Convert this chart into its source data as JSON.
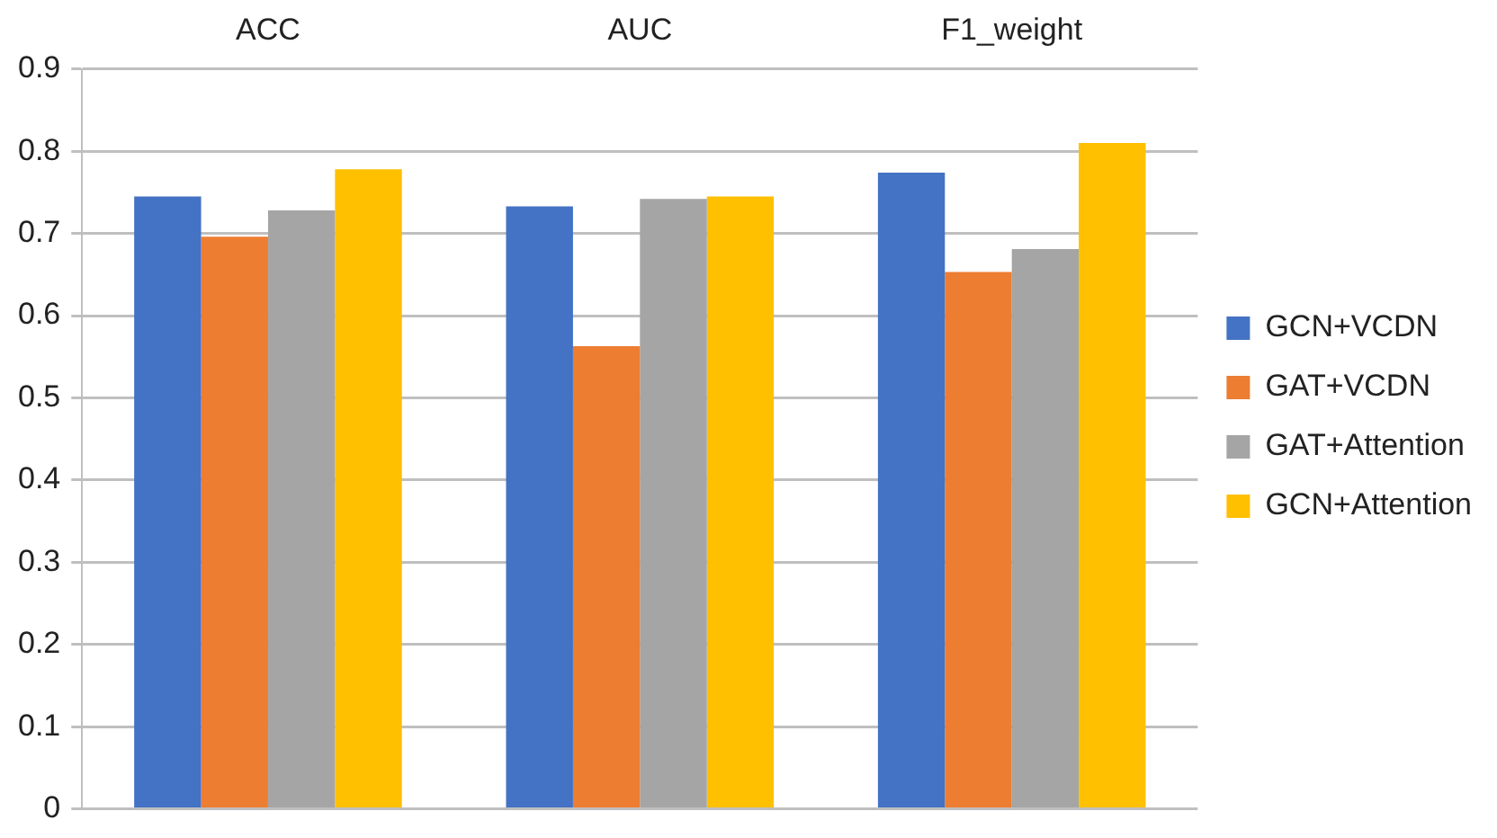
{
  "chart_data": {
    "type": "bar",
    "categories": [
      "ACC",
      "AUC",
      "F1_weight"
    ],
    "series": [
      {
        "name": "GCN+VCDN",
        "color": "#4472c4",
        "values": [
          0.745,
          0.733,
          0.774
        ]
      },
      {
        "name": "GAT+VCDN",
        "color": "#ed7d31",
        "values": [
          0.696,
          0.563,
          0.653
        ]
      },
      {
        "name": "GAT+Attention",
        "color": "#a5a5a5",
        "values": [
          0.728,
          0.742,
          0.681
        ]
      },
      {
        "name": "GCN+Attention",
        "color": "#ffc000",
        "values": [
          0.778,
          0.745,
          0.81
        ]
      }
    ],
    "ylim": [
      0,
      0.9
    ],
    "yticks": [
      0,
      0.1,
      0.2,
      0.3,
      0.4,
      0.5,
      0.6,
      0.7,
      0.8,
      0.9
    ],
    "grid": "y",
    "legend": "right"
  }
}
